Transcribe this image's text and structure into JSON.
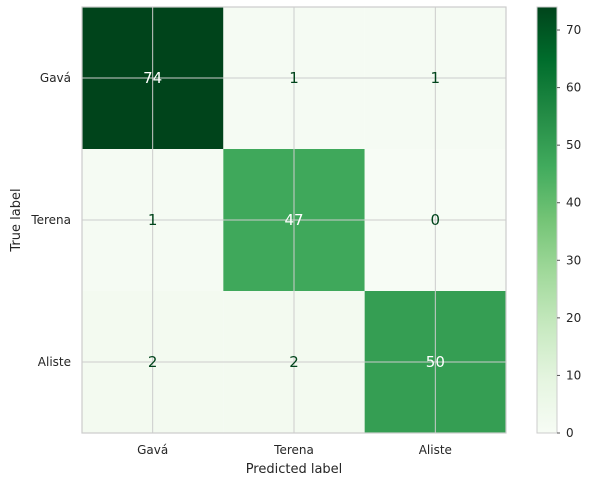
{
  "chart_data": {
    "type": "heatmap",
    "title": "",
    "xlabel": "Predicted label",
    "ylabel": "True label",
    "x_categories": [
      "Gavá",
      "Terena",
      "Aliste"
    ],
    "y_categories": [
      "Gavá",
      "Terena",
      "Aliste"
    ],
    "values": [
      [
        74,
        1,
        1
      ],
      [
        1,
        47,
        0
      ],
      [
        2,
        2,
        50
      ]
    ],
    "colormap": "Greens",
    "color_range": [
      0,
      74
    ],
    "colorbar_ticks": [
      "0",
      "10",
      "20",
      "30",
      "40",
      "50",
      "60",
      "70"
    ],
    "grid": true
  }
}
